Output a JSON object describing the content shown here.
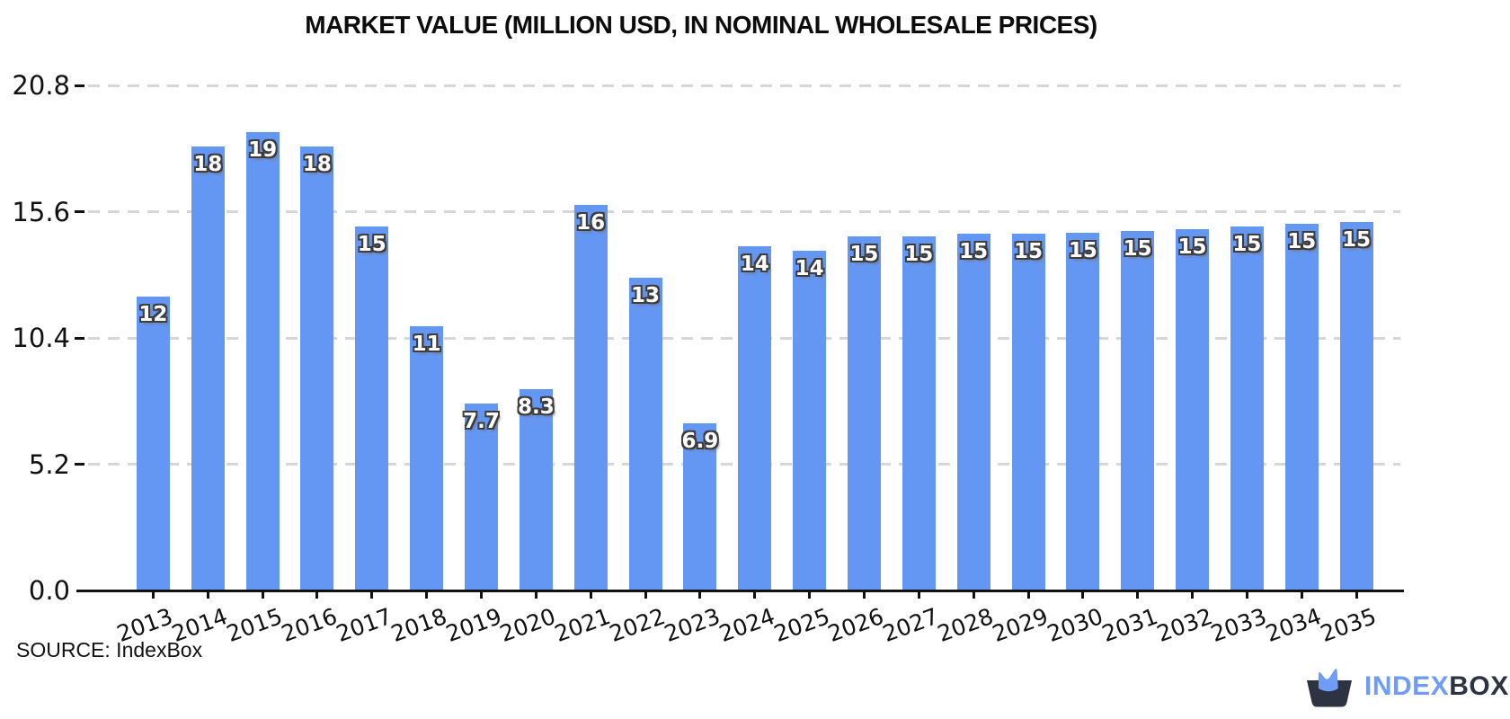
{
  "title": "MARKET VALUE (MILLION USD, IN NOMINAL WHOLESALE PRICES)",
  "source": "SOURCE: IndexBox",
  "logo": {
    "index": "INDEX",
    "box": "BOX"
  },
  "colors": {
    "bar": "#6496f3",
    "bar_label_fill": "#ffffff",
    "bar_label_outline": "#3d3d3d",
    "grid": "#d7d7d7",
    "axis": "#111111",
    "logo_blue": "#6f9cf4",
    "logo_dark": "#2e3342"
  },
  "chart_data": {
    "type": "bar",
    "title": "MARKET VALUE (MILLION USD, IN NOMINAL WHOLESALE PRICES)",
    "xlabel": "",
    "ylabel": "",
    "categories": [
      "2013",
      "2014",
      "2015",
      "2016",
      "2017",
      "2018",
      "2019",
      "2020",
      "2021",
      "2022",
      "2023",
      "2024",
      "2025",
      "2026",
      "2027",
      "2028",
      "2029",
      "2030",
      "2031",
      "2032",
      "2033",
      "2034",
      "2035"
    ],
    "values": [
      12.1,
      18.3,
      18.9,
      18.3,
      15.0,
      10.9,
      7.7,
      8.3,
      15.9,
      12.9,
      6.9,
      14.2,
      14.0,
      14.6,
      14.6,
      14.7,
      14.7,
      14.75,
      14.8,
      14.9,
      15.0,
      15.1,
      15.2
    ],
    "bar_labels": [
      "12",
      "18",
      "19",
      "18",
      "15",
      "11",
      "7.7",
      "8.3",
      "16",
      "13",
      "6.9",
      "14",
      "14",
      "15",
      "15",
      "15",
      "15",
      "15",
      "15",
      "15",
      "15",
      "15",
      "15"
    ],
    "yticks": [
      0.0,
      5.2,
      10.4,
      15.6,
      20.8
    ],
    "ytick_labels": [
      "0.0",
      "5.2",
      "10.4",
      "15.6",
      "20.8"
    ],
    "ylim": [
      0,
      21.6
    ],
    "grid": "horizontal-dashed",
    "legend": "none"
  }
}
